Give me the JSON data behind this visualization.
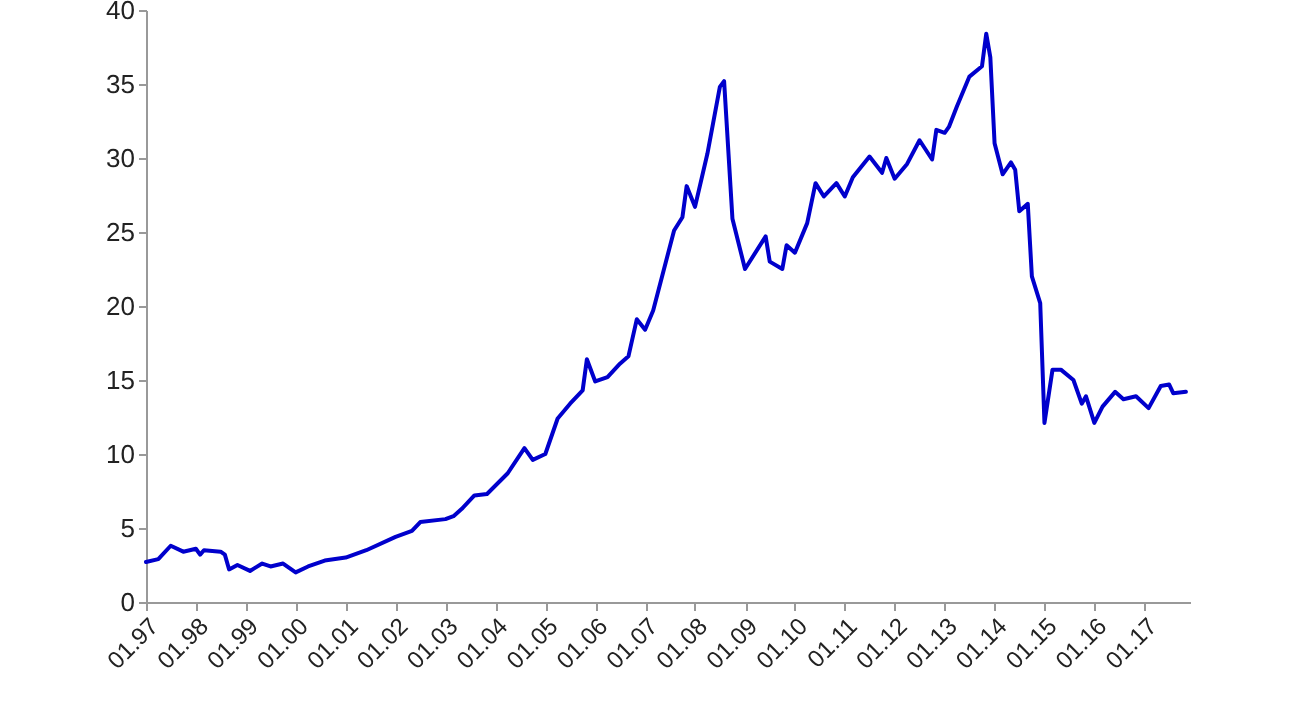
{
  "chart_data": {
    "type": "line",
    "x": [
      "1997-01",
      "1997-04",
      "1997-07",
      "1997-10",
      "1998-01",
      "1998-02",
      "1998-03",
      "1998-07",
      "1998-08",
      "1998-09",
      "1998-11",
      "1999-02",
      "1999-05",
      "1999-07",
      "1999-10",
      "2000-01",
      "2000-04",
      "2000-08",
      "2001-01",
      "2001-06",
      "2002-01",
      "2002-05",
      "2002-07",
      "2003-01",
      "2003-03",
      "2003-05",
      "2003-08",
      "2003-11",
      "2004-04",
      "2004-08",
      "2004-10",
      "2005-01",
      "2005-04",
      "2005-07",
      "2005-10",
      "2005-11",
      "2006-01",
      "2006-04",
      "2006-07",
      "2006-09",
      "2006-11",
      "2007-01",
      "2007-03",
      "2007-08",
      "2007-10",
      "2007-11",
      "2008-01",
      "2008-04",
      "2008-07",
      "2008-08",
      "2008-10",
      "2009-01",
      "2009-06",
      "2009-07",
      "2009-10",
      "2009-11",
      "2010-01",
      "2010-04",
      "2010-06",
      "2010-08",
      "2010-11",
      "2011-01",
      "2011-03",
      "2011-07",
      "2011-10",
      "2011-11",
      "2012-01",
      "2012-04",
      "2012-07",
      "2012-10",
      "2012-11",
      "2013-01",
      "2013-02",
      "2013-04",
      "2013-07",
      "2013-10",
      "2013-11",
      "2013-12",
      "2014-01",
      "2014-03",
      "2014-05",
      "2014-06",
      "2014-07",
      "2014-09",
      "2014-10",
      "2014-12",
      "2015-01",
      "2015-03",
      "2015-05",
      "2015-08",
      "2015-10",
      "2015-11",
      "2016-01",
      "2016-03",
      "2016-06",
      "2016-08",
      "2016-11",
      "2017-02",
      "2017-05",
      "2017-07",
      "2017-08",
      "2017-11"
    ],
    "series": [
      {
        "color": "#0000cc",
        "values": [
          2.7,
          2.9,
          3.8,
          3.4,
          3.6,
          3.2,
          3.5,
          3.4,
          3.2,
          2.2,
          2.5,
          2.1,
          2.6,
          2.4,
          2.6,
          2.0,
          2.4,
          2.8,
          3.0,
          3.5,
          4.4,
          4.8,
          5.4,
          5.6,
          5.8,
          6.3,
          7.2,
          7.3,
          8.7,
          10.4,
          9.6,
          10.0,
          12.4,
          13.4,
          14.3,
          16.4,
          14.9,
          15.2,
          16.1,
          16.6,
          19.1,
          18.4,
          19.7,
          25.1,
          26.0,
          28.1,
          26.7,
          30.3,
          34.8,
          35.2,
          25.9,
          22.5,
          24.7,
          23.0,
          22.5,
          24.1,
          23.6,
          25.6,
          28.3,
          27.4,
          28.3,
          27.4,
          28.7,
          30.1,
          29.0,
          30.0,
          28.6,
          29.6,
          31.2,
          29.9,
          31.9,
          31.7,
          32.1,
          33.5,
          35.5,
          36.2,
          38.4,
          36.8,
          31.0,
          28.9,
          29.7,
          29.2,
          26.4,
          26.9,
          22.0,
          20.2,
          12.1,
          15.7,
          15.7,
          15.0,
          13.4,
          13.9,
          12.1,
          13.2,
          14.2,
          13.7,
          13.9,
          13.1,
          14.6,
          14.7,
          14.1,
          14.2
        ]
      }
    ],
    "xlim": [
      "1997-01",
      "2017-12"
    ],
    "xticks": [
      {
        "value": "1997-01",
        "label": "01.97"
      },
      {
        "value": "1998-01",
        "label": "01.98"
      },
      {
        "value": "1999-01",
        "label": "01.99"
      },
      {
        "value": "2000-01",
        "label": "01.00"
      },
      {
        "value": "2001-01",
        "label": "01.01"
      },
      {
        "value": "2002-01",
        "label": "01.02"
      },
      {
        "value": "2003-01",
        "label": "01.03"
      },
      {
        "value": "2004-01",
        "label": "01.04"
      },
      {
        "value": "2005-01",
        "label": "01.05"
      },
      {
        "value": "2006-01",
        "label": "01.06"
      },
      {
        "value": "2007-01",
        "label": "01.07"
      },
      {
        "value": "2008-01",
        "label": "01.08"
      },
      {
        "value": "2009-01",
        "label": "01.09"
      },
      {
        "value": "2010-01",
        "label": "01.10"
      },
      {
        "value": "2011-01",
        "label": "01.11"
      },
      {
        "value": "2012-01",
        "label": "01.12"
      },
      {
        "value": "2013-01",
        "label": "01.13"
      },
      {
        "value": "2014-01",
        "label": "01.14"
      },
      {
        "value": "2015-01",
        "label": "01.15"
      },
      {
        "value": "2016-01",
        "label": "01.16"
      },
      {
        "value": "2017-01",
        "label": "01.17"
      }
    ],
    "ylim": [
      0,
      40
    ],
    "yticks": [
      0,
      5,
      10,
      15,
      20,
      25,
      30,
      35,
      40
    ],
    "line_style": "solid"
  }
}
